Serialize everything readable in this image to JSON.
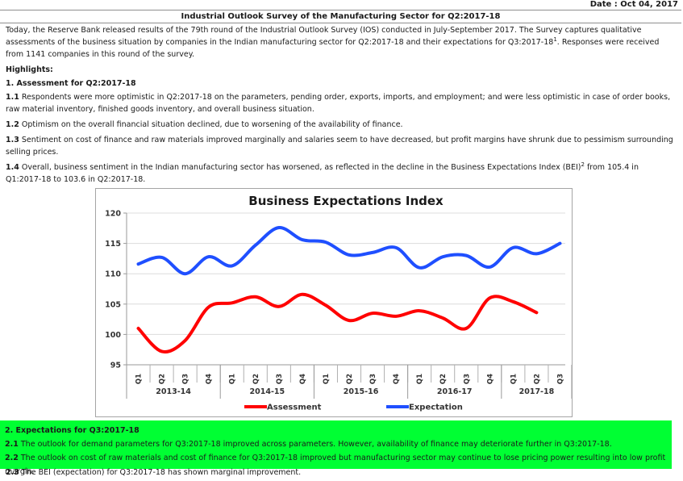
{
  "header": {
    "date": "Date : Oct 04, 2017",
    "title": "Industrial Outlook Survey of the Manufacturing Sector for Q2:2017-18"
  },
  "intro": {
    "text_a": "Today, the Reserve Bank released results of the 79th round of the Industrial Outlook Survey (IOS) conducted in July-September 2017. The Survey captures qualitative assessments of the business situation by companies in the Indian manufacturing sector for Q2:2017-18 and their expectations for Q3:2017-18",
    "sup": "1",
    "text_b": ". Responses were received from 1141 companies in this round of the survey."
  },
  "highlights": {
    "heading": "Highlights:",
    "assessment_heading": "1. Assessment for Q2:2017-18",
    "items": [
      {
        "num": "1.1",
        "text": "Respondents were more optimistic in Q2:2017-18 on the parameters, pending order, exports, imports, and employment; and were less optimistic in case of order books, raw material inventory, finished goods inventory, and overall business situation."
      },
      {
        "num": "1.2",
        "text": "Optimism on the overall financial situation declined, due to worsening of the availability of finance."
      },
      {
        "num": "1.3",
        "text": "Sentiment on cost of finance and raw materials improved marginally and salaries seem to have decreased, but profit margins have shrunk due to pessimism surrounding selling prices."
      }
    ],
    "item_14": {
      "num": "1.4",
      "text_a": "Overall, business sentiment in the Indian manufacturing sector has worsened, as reflected in the decline in the Business Expectations Index (BEI)",
      "sup": "2",
      "text_b": " from 105.4 in Q1:2017-18 to 103.6 in Q2:2017-18."
    }
  },
  "expectations": {
    "heading": "2. Expectations for Q3:2017-18",
    "items": [
      {
        "num": "2.1",
        "text": "The outlook for demand parameters for Q3:2017-18 improved across parameters. However, availability of finance may deteriorate further in Q3:2017-18."
      },
      {
        "num": "2.2",
        "text": "The outlook on cost of raw materials and cost of finance for Q3:2017-18 improved but manufacturing sector may continue to lose pricing power resulting into low profit margin."
      },
      {
        "num": "2.3",
        "text": "The BEI (expectation) for Q3:2017-18 has shown marginal improvement."
      }
    ],
    "highlight_color": "#00ff33"
  },
  "chart_data": {
    "type": "line",
    "title": "Business Expectations Index",
    "xlabel": "",
    "ylabel": "",
    "ylim": [
      95,
      120
    ],
    "yticks": [
      95,
      100,
      105,
      110,
      115,
      120
    ],
    "categories": [
      "Q1",
      "Q2",
      "Q3",
      "Q4",
      "Q1",
      "Q2",
      "Q3",
      "Q4",
      "Q1",
      "Q2",
      "Q3",
      "Q4",
      "Q1",
      "Q2",
      "Q3",
      "Q4",
      "Q1",
      "Q2",
      "Q3"
    ],
    "year_groups": [
      {
        "label": "2013-14",
        "count": 4
      },
      {
        "label": "2014-15",
        "count": 4
      },
      {
        "label": "2015-16",
        "count": 4
      },
      {
        "label": "2016-17",
        "count": 4
      },
      {
        "label": "2017-18",
        "count": 3
      }
    ],
    "grid": true,
    "legend_position": "bottom",
    "series": [
      {
        "name": "Assessment",
        "color": "#ff0000",
        "values": [
          101.0,
          97.2,
          99.0,
          104.5,
          105.2,
          106.2,
          104.6,
          106.6,
          104.8,
          102.3,
          103.5,
          103.0,
          103.9,
          102.7,
          101.0,
          106.0,
          105.4,
          103.6,
          null
        ]
      },
      {
        "name": "Expectation",
        "color": "#1f4fff",
        "values": [
          111.6,
          112.7,
          110.0,
          112.8,
          111.3,
          114.7,
          117.6,
          115.6,
          115.2,
          113.1,
          113.5,
          114.3,
          111.0,
          112.8,
          113.0,
          111.1,
          114.3,
          113.3,
          115.0
        ]
      }
    ]
  }
}
